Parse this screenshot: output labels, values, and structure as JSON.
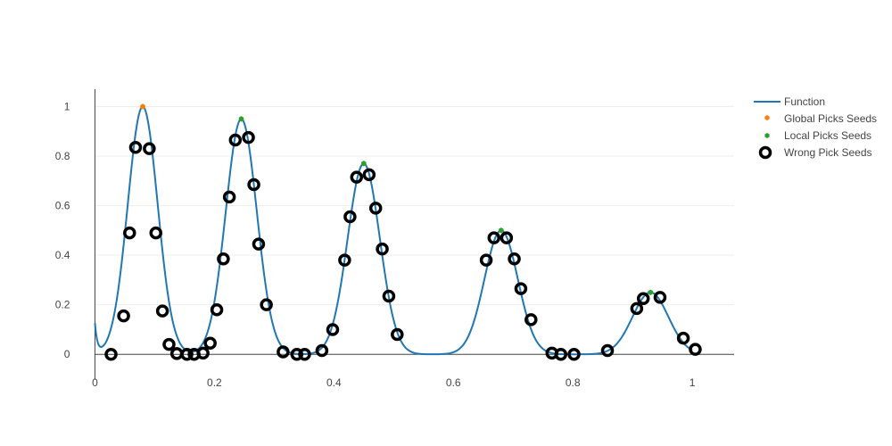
{
  "chart_data": {
    "type": "scatter",
    "title": "",
    "xlabel": "",
    "ylabel": "",
    "xlim": [
      -0.035,
      1.07
    ],
    "ylim": [
      -0.1,
      1.07
    ],
    "x_ticks": [
      0,
      0.2,
      0.4,
      0.6,
      0.8,
      1
    ],
    "x_tick_labels": [
      "0",
      "0.2",
      "0.4",
      "0.6",
      "0.8",
      "1"
    ],
    "y_ticks": [
      0,
      0.2,
      0.4,
      0.6,
      0.8,
      1
    ],
    "y_tick_labels": [
      "0",
      "0.2",
      "0.4",
      "0.6",
      "0.8",
      "1"
    ],
    "grid": "horizontal",
    "legend_position": "top-right",
    "function_peaks": [
      {
        "center": 0.08,
        "height": 1.0,
        "width": 0.025
      },
      {
        "center": 0.245,
        "height": 0.95,
        "width": 0.026
      },
      {
        "center": 0.45,
        "height": 0.77,
        "width": 0.027
      },
      {
        "center": 0.68,
        "height": 0.5,
        "width": 0.028
      },
      {
        "center": 0.93,
        "height": 0.25,
        "width": 0.03
      }
    ],
    "series": [
      {
        "name": "Function",
        "kind": "line",
        "color": "#1f77b4",
        "x_start": 0,
        "x_end": 1
      },
      {
        "name": "Global Picks Seeds",
        "kind": "markers",
        "color": "#ff7f0e",
        "x": [
          0.08
        ],
        "y": [
          1.0
        ]
      },
      {
        "name": "Local Picks Seeds",
        "kind": "markers",
        "color": "#2ca02c",
        "x": [
          0.245,
          0.45,
          0.68,
          0.93
        ],
        "y": [
          0.95,
          0.77,
          0.5,
          0.25
        ]
      },
      {
        "name": "Wrong Pick Seeds",
        "kind": "open-circles",
        "color": "#000000",
        "x": [
          0.027,
          0.048,
          0.058,
          0.068,
          0.091,
          0.102,
          0.113,
          0.124,
          0.137,
          0.154,
          0.166,
          0.181,
          0.193,
          0.204,
          0.215,
          0.225,
          0.235,
          0.257,
          0.266,
          0.274,
          0.287,
          0.315,
          0.338,
          0.351,
          0.38,
          0.398,
          0.418,
          0.427,
          0.438,
          0.459,
          0.47,
          0.481,
          0.492,
          0.506,
          0.655,
          0.668,
          0.689,
          0.702,
          0.713,
          0.73,
          0.765,
          0.78,
          0.802,
          0.858,
          0.907,
          0.918,
          0.946,
          0.985,
          1.005
        ],
        "y": [
          0.0,
          0.155,
          0.49,
          0.835,
          0.83,
          0.49,
          0.175,
          0.04,
          0.003,
          0.0,
          0.0,
          0.005,
          0.045,
          0.18,
          0.385,
          0.635,
          0.865,
          0.875,
          0.685,
          0.445,
          0.2,
          0.01,
          0.0,
          0.0,
          0.015,
          0.1,
          0.38,
          0.555,
          0.715,
          0.725,
          0.59,
          0.425,
          0.235,
          0.08,
          0.38,
          0.47,
          0.47,
          0.385,
          0.265,
          0.14,
          0.005,
          0.0,
          0.0,
          0.015,
          0.185,
          0.225,
          0.23,
          0.065,
          0.02
        ]
      }
    ]
  },
  "legend": {
    "items": [
      "Function",
      "Global Picks Seeds",
      "Local Picks Seeds",
      "Wrong Pick Seeds"
    ]
  }
}
